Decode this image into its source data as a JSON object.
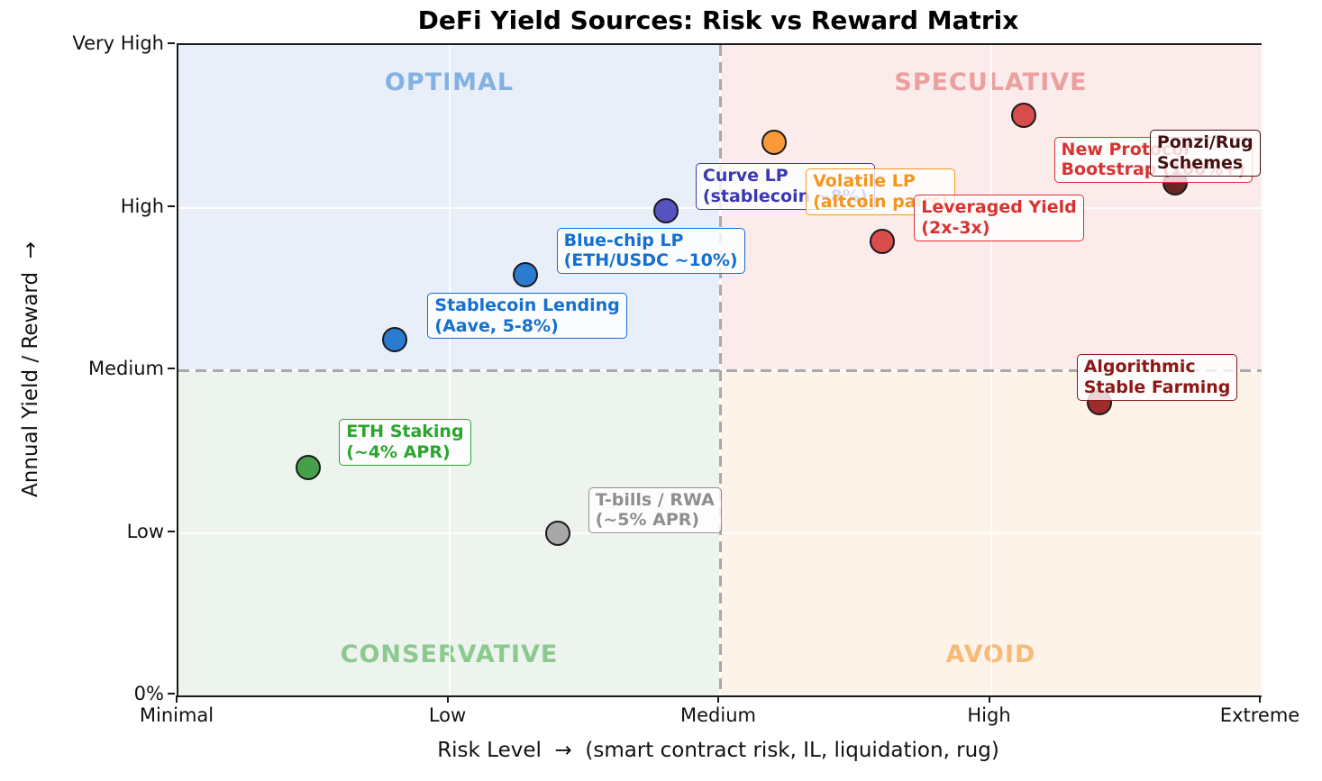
{
  "chart_data": {
    "type": "scatter",
    "title": "DeFi Yield Sources: Risk vs Reward Matrix",
    "xlabel": "Risk Level  →  (smart contract risk, IL, liquidation, rug)",
    "ylabel": "Annual Yield / Reward  →",
    "x_ticks": [
      "Minimal",
      "Low",
      "Medium",
      "High",
      "Extreme"
    ],
    "y_ticks": [
      "0%",
      "Low",
      "Medium",
      "High",
      "Very High"
    ],
    "xlim": [
      0,
      4
    ],
    "ylim": [
      0,
      4
    ],
    "grid": true,
    "legend": "none",
    "divider": {
      "x": 2,
      "y": 2,
      "style": "dashed",
      "color": "#a9a9a9"
    },
    "quadrants": [
      {
        "id": "optimal",
        "label": "OPTIMAL",
        "position": "top-left",
        "bg": "#e9eff9",
        "label_color": "#83b1e2"
      },
      {
        "id": "speculative",
        "label": "SPECULATIVE",
        "position": "top-right",
        "bg": "#fbebeb",
        "label_color": "#ec9f9f"
      },
      {
        "id": "conservative",
        "label": "CONSERVATIVE",
        "position": "bottom-left",
        "bg": "#edf4ee",
        "label_color": "#8cc98f"
      },
      {
        "id": "avoid",
        "label": "AVOID",
        "position": "bottom-right",
        "bg": "#fdf3e8",
        "label_color": "#f7ba79"
      }
    ],
    "points": [
      {
        "id": "eth-staking",
        "x": 0.48,
        "y": 1.4,
        "dot_color": "#45a049",
        "label_color": "#2aa52e",
        "label_lines": [
          "ETH Staking",
          "(~4% APR)"
        ]
      },
      {
        "id": "tbills-rwa",
        "x": 1.4,
        "y": 1.0,
        "dot_color": "#a8a8a8",
        "label_color": "#8e8e8e",
        "label_lines": [
          "T-bills / RWA",
          "(~5% APR)"
        ]
      },
      {
        "id": "stablecoin-lending",
        "x": 0.8,
        "y": 2.19,
        "dot_color": "#2b7bd0",
        "label_color": "#146fd2",
        "label_lines": [
          "Stablecoin Lending",
          "(Aave, 5-8%)"
        ]
      },
      {
        "id": "bluechip-lp",
        "x": 1.28,
        "y": 2.59,
        "dot_color": "#2b7bd0",
        "label_color": "#146fd2",
        "label_lines": [
          "Blue-chip LP",
          "(ETH/USDC ~10%)"
        ]
      },
      {
        "id": "curve-lp",
        "x": 1.8,
        "y": 2.98,
        "dot_color": "#5552c2",
        "label_color": "#3a38b5",
        "label_lines": [
          "Curve LP",
          "(stablecoin ~8%)"
        ]
      },
      {
        "id": "volatile-lp",
        "x": 2.2,
        "y": 3.4,
        "dot_color": "#f99939",
        "label_color": "#f7941d",
        "label_lines": [
          "Volatile LP",
          "(altcoin pairs)"
        ]
      },
      {
        "id": "leveraged-yield",
        "x": 2.6,
        "y": 2.79,
        "dot_color": "#d94c4c",
        "label_color": "#d93232",
        "label_lines": [
          "Leveraged Yield",
          "(2x-3x)"
        ]
      },
      {
        "id": "new-protocol",
        "x": 3.12,
        "y": 3.57,
        "dot_color": "#d94c4c",
        "label_color": "#d93232",
        "label_lines": [
          "New Protocol",
          "Bootstrap (100%+)"
        ]
      },
      {
        "id": "ponzi-rug",
        "x": 3.68,
        "y": 3.15,
        "dot_color": "#6b2525",
        "label_color": "#421111",
        "label_lines": [
          "Ponzi/Rug",
          "Schemes"
        ]
      },
      {
        "id": "algo-stable",
        "x": 3.4,
        "y": 1.8,
        "dot_color": "#9e2c2c",
        "label_color": "#8c1717",
        "label_lines": [
          "Algorithmic",
          "Stable Farming"
        ]
      }
    ]
  }
}
